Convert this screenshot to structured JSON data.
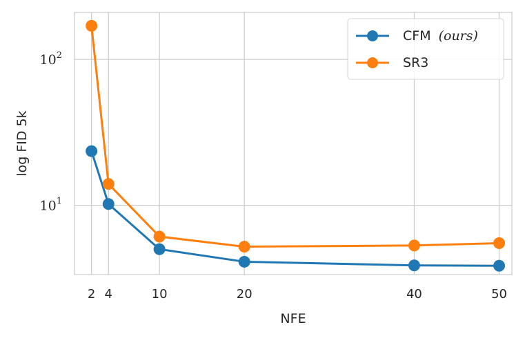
{
  "chart_data": {
    "type": "line",
    "title": "",
    "xlabel": "NFE",
    "ylabel": "log FID 5k",
    "yscale": "log",
    "x": [
      2,
      4,
      10,
      20,
      40,
      50
    ],
    "xticks": [
      "2",
      "4",
      "10",
      "20",
      "40",
      "50"
    ],
    "xlim": [
      0,
      51.5
    ],
    "ylim": [
      3.35,
      210
    ],
    "yticks": [
      {
        "value": 10,
        "base": "10",
        "exponent": "1"
      },
      {
        "value": 100,
        "base": "10",
        "exponent": "2"
      }
    ],
    "grid": true,
    "legend_position": "top-right",
    "series": [
      {
        "name": "CFM",
        "name_suffix": "(ours)",
        "color": "#1f77b4",
        "values": [
          23.5,
          10.2,
          5.0,
          4.1,
          3.87,
          3.85
        ]
      },
      {
        "name": "SR3",
        "name_suffix": "",
        "color": "#ff7f0e",
        "values": [
          170,
          14.0,
          6.1,
          5.2,
          5.3,
          5.5
        ]
      }
    ]
  }
}
